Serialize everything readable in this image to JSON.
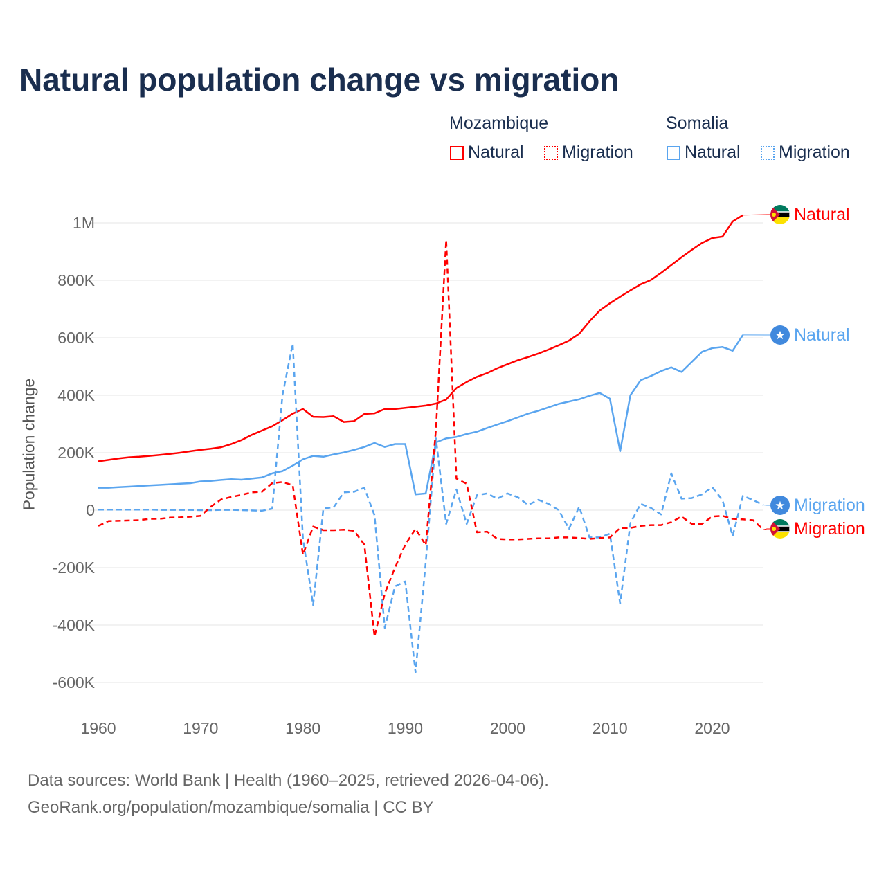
{
  "title": "Natural population change vs migration",
  "legend": {
    "groups": [
      {
        "name": "Mozambique",
        "items": [
          "Natural",
          "Migration"
        ],
        "color": "#ff0000"
      },
      {
        "name": "Somalia",
        "items": [
          "Natural",
          "Migration"
        ],
        "color": "#5aa5ef"
      }
    ]
  },
  "source": {
    "line1": "Data sources: World Bank | Health (1960–2025, retrieved 2026-04-06).",
    "line2": "GeoRank.org/population/mozambique/somalia | CC BY"
  },
  "chart_data": {
    "type": "line",
    "title": "Natural population change vs migration",
    "xlabel": "",
    "ylabel": "Population change",
    "xlim": [
      1960,
      2025
    ],
    "ylim": [
      -700000,
      1100000
    ],
    "xticks": [
      1960,
      1970,
      1980,
      1990,
      2000,
      2010,
      2020
    ],
    "yticks": [
      {
        "v": 1000000,
        "label": "1M"
      },
      {
        "v": 800000,
        "label": "800K"
      },
      {
        "v": 600000,
        "label": "600K"
      },
      {
        "v": 400000,
        "label": "400K"
      },
      {
        "v": 200000,
        "label": "200K"
      },
      {
        "v": 0,
        "label": "0"
      },
      {
        "v": -200000,
        "label": "-200K"
      },
      {
        "v": -400000,
        "label": "-400K"
      },
      {
        "v": -600000,
        "label": "-600K"
      }
    ],
    "grid": true,
    "series": [
      {
        "name": "Mozambique Natural",
        "label": "Natural",
        "color": "#ff0000",
        "dash": false,
        "flag": "mozambique",
        "start": 1960,
        "values_k": [
          170,
          175,
          180,
          184,
          186,
          189,
          192,
          196,
          200,
          205,
          210,
          214,
          219,
          230,
          244,
          262,
          277,
          292,
          313,
          336,
          352,
          325,
          324,
          327,
          307,
          310,
          335,
          337,
          352,
          352,
          356,
          360,
          364,
          371,
          385,
          425,
          446,
          464,
          477,
          494,
          508,
          522,
          533,
          545,
          559,
          574,
          590,
          614,
          657,
          695,
          720,
          743,
          765,
          786,
          801,
          826,
          853,
          880,
          906,
          930,
          947,
          952,
          1005,
          1027
        ]
      },
      {
        "name": "Somalia Natural",
        "label": "Natural",
        "color": "#5aa5ef",
        "dash": false,
        "flag": "somalia",
        "start": 1960,
        "values_k": [
          78,
          78,
          80,
          82,
          84,
          86,
          88,
          90,
          92,
          94,
          100,
          102,
          105,
          108,
          106,
          110,
          114,
          128,
          136,
          155,
          177,
          189,
          186,
          194,
          201,
          210,
          220,
          234,
          220,
          230,
          230,
          55,
          58,
          236,
          250,
          255,
          265,
          273,
          286,
          298,
          310,
          323,
          336,
          346,
          358,
          370,
          378,
          386,
          398,
          408,
          388,
          205,
          400,
          452,
          467,
          484,
          497,
          481,
          516,
          551,
          564,
          568,
          555,
          610
        ]
      },
      {
        "name": "Somalia Migration",
        "label": "Migration",
        "color": "#5aa5ef",
        "dash": true,
        "flag": "somalia",
        "start": 1960,
        "values_k": [
          2,
          2,
          2,
          2,
          2,
          2,
          1,
          1,
          1,
          1,
          0,
          0,
          1,
          1,
          0,
          -1,
          -2,
          5,
          400,
          580,
          -100,
          -330,
          6,
          10,
          62,
          64,
          78,
          -18,
          -410,
          -265,
          -248,
          -565,
          -180,
          250,
          -48,
          72,
          -48,
          52,
          58,
          40,
          58,
          45,
          18,
          36,
          22,
          0,
          -65,
          12,
          -95,
          -95,
          -82,
          -325,
          -45,
          22,
          8,
          -15,
          128,
          40,
          42,
          55,
          80,
          35,
          -90,
          50,
          35,
          18
        ]
      },
      {
        "name": "Mozambique Migration",
        "label": "Migration",
        "color": "#ff0000",
        "dash": true,
        "flag": "mozambique",
        "start": 1960,
        "values_k": [
          -55,
          -38,
          -37,
          -36,
          -35,
          -30,
          -30,
          -26,
          -25,
          -23,
          -20,
          12,
          37,
          46,
          53,
          62,
          64,
          94,
          98,
          87,
          -155,
          -57,
          -70,
          -70,
          -68,
          -72,
          -120,
          -440,
          -290,
          -200,
          -120,
          -65,
          -122,
          280,
          940,
          110,
          92,
          -77,
          -75,
          -100,
          -102,
          -102,
          -100,
          -98,
          -98,
          -95,
          -95,
          -97,
          -100,
          -97,
          -95,
          -62,
          -62,
          -55,
          -52,
          -52,
          -42,
          -22,
          -48,
          -48,
          -22,
          -20,
          -30,
          -32,
          -35,
          -68
        ]
      }
    ]
  }
}
